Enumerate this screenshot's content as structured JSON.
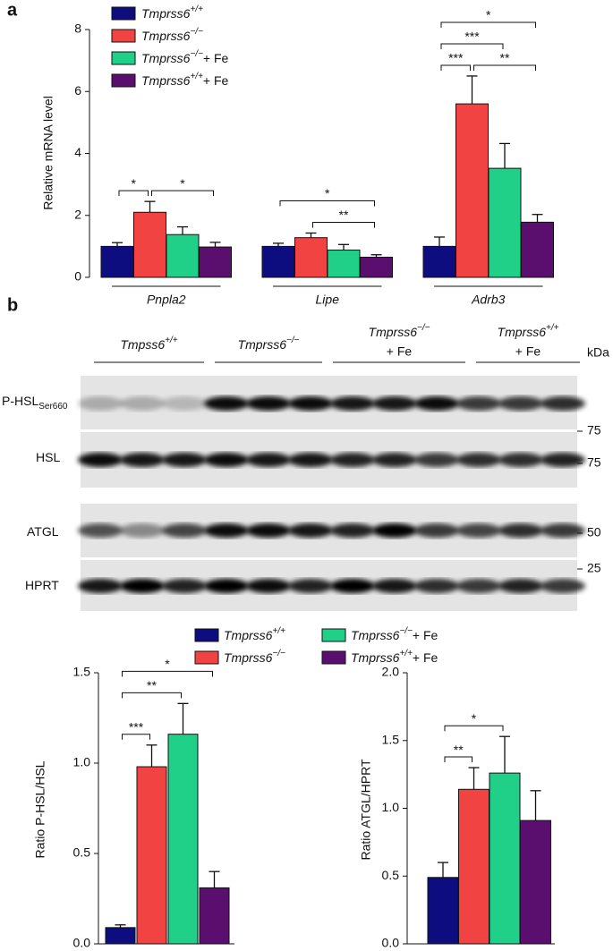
{
  "panel_labels": [
    "a",
    "b"
  ],
  "chart_data": [
    {
      "type": "bar",
      "ylabel": "Relative mRNA level",
      "categories": [
        "Pnpla2",
        "Lipe",
        "Adrb3"
      ],
      "ylim": [
        0,
        8
      ],
      "yticks": [
        0,
        2,
        4,
        6,
        8
      ],
      "legend": "upper left",
      "series": [
        {
          "name": "Tmprss6+/+",
          "color": "#0d0d80",
          "values": [
            1.0,
            1.0,
            1.0
          ],
          "errors": [
            0.12,
            0.1,
            0.3
          ]
        },
        {
          "name": "Tmprss6−/−",
          "color": "#f24343",
          "values": [
            2.1,
            1.28,
            5.6
          ],
          "errors": [
            0.35,
            0.15,
            0.9
          ]
        },
        {
          "name": "Tmprss6−/−+ Fe",
          "color": "#20cf88",
          "values": [
            1.38,
            0.88,
            3.52
          ],
          "errors": [
            0.25,
            0.18,
            0.8
          ]
        },
        {
          "name": "Tmprss6+/++ Fe",
          "color": "#5a0e6e",
          "values": [
            0.98,
            0.65,
            1.78
          ],
          "errors": [
            0.15,
            0.08,
            0.25
          ]
        }
      ],
      "annotations": [
        {
          "text": "*",
          "category": 0,
          "bars": [
            0,
            1
          ]
        },
        {
          "text": "*",
          "category": 0,
          "bars": [
            1,
            3
          ]
        },
        {
          "text": "*",
          "category": 1,
          "bars": [
            0,
            3
          ]
        },
        {
          "text": "**",
          "category": 1,
          "bars": [
            1,
            3
          ]
        },
        {
          "text": "*",
          "category": 2,
          "bars": [
            0,
            3
          ]
        },
        {
          "text": "***",
          "category": 2,
          "bars": [
            0,
            2
          ]
        },
        {
          "text": "***",
          "category": 2,
          "bars": [
            0,
            1
          ]
        },
        {
          "text": "**",
          "category": 2,
          "bars": [
            1,
            3
          ]
        }
      ]
    },
    {
      "type": "bar",
      "ylabel": "Ratio P-HSL/HSL",
      "ylim": [
        0,
        1.5
      ],
      "yticks": [
        {
          "value": 0,
          "label": "0.0"
        },
        0.5,
        {
          "value": 1,
          "label": "1.0"
        },
        1.5
      ],
      "legend": "above",
      "series": [
        {
          "name": "Tmprss6+/+",
          "color": "#0d0d80",
          "values": [
            0.09
          ],
          "errors": [
            0.015
          ]
        },
        {
          "name": "Tmprss6−/−",
          "color": "#f24343",
          "values": [
            0.98
          ],
          "errors": [
            0.12
          ]
        },
        {
          "name": "Tmprss6−/−+ Fe",
          "color": "#20cf88",
          "values": [
            1.16
          ],
          "errors": [
            0.17
          ]
        },
        {
          "name": "Tmprss6+/++ Fe",
          "color": "#5a0e6e",
          "values": [
            0.31
          ],
          "errors": [
            0.09
          ]
        }
      ],
      "annotations": [
        {
          "text": "***",
          "bars": [
            0,
            1
          ]
        },
        {
          "text": "**",
          "bars": [
            0,
            2
          ]
        },
        {
          "text": "*",
          "bars": [
            0,
            3
          ]
        }
      ]
    },
    {
      "type": "bar",
      "ylabel": "Ratio ATGL/HPRT",
      "ylim": [
        0,
        2
      ],
      "yticks": [
        {
          "value": 0,
          "label": "0.0"
        },
        0.5,
        {
          "value": 1,
          "label": "1.0"
        },
        1.5,
        {
          "value": 2,
          "label": "2.0"
        }
      ],
      "series": [
        {
          "color": "#0d0d80",
          "values": [
            0.49
          ],
          "errors": [
            0.11
          ]
        },
        {
          "color": "#f24343",
          "values": [
            1.14
          ],
          "errors": [
            0.16
          ]
        },
        {
          "color": "#20cf88",
          "values": [
            1.26
          ],
          "errors": [
            0.27
          ]
        },
        {
          "color": "#5a0e6e",
          "values": [
            0.91
          ],
          "errors": [
            0.22
          ]
        }
      ],
      "annotations": [
        {
          "text": "**",
          "bars": [
            0,
            1
          ]
        },
        {
          "text": "*",
          "bars": [
            0,
            2
          ]
        }
      ]
    }
  ],
  "blot": {
    "groups": [
      [
        "Tmpss6+/+"
      ],
      [
        "Tmprss6−/−"
      ],
      [
        "Tmprss6−/−",
        "+ Fe"
      ],
      [
        "Tmprss6+/+",
        "+ Fe"
      ]
    ],
    "unit": "kDa",
    "rows": [
      {
        "label": "P-HSL",
        "subscript": "Ser660"
      },
      {
        "label": "HSL"
      },
      {
        "label": "ATGL"
      },
      {
        "label": "HPRT"
      }
    ],
    "markers": [
      75,
      75,
      50,
      25
    ]
  }
}
